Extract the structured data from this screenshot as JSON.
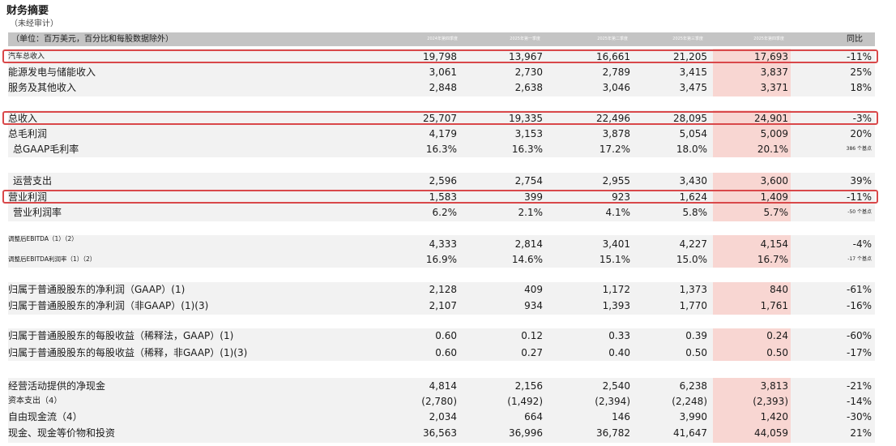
{
  "title": "财务摘要",
  "subtitle": "（未经审计）",
  "header": {
    "unit_label": "（单位：百万美元，百分比和每股数据除外）",
    "periods": [
      "2024年第四季度",
      "2025年第一季度",
      "2025年第二季度",
      "2025年第三季度",
      "2025年第四季度"
    ],
    "yoy_label": "同比"
  },
  "rows": [
    {
      "label": "汽车总收入",
      "values": [
        "19,798",
        "13,967",
        "16,661",
        "21,205",
        "17,693"
      ],
      "yoy": "-11%"
    },
    {
      "label": "能源发电与储能收入",
      "values": [
        "3,061",
        "2,730",
        "2,789",
        "3,415",
        "3,837"
      ],
      "yoy": "25%"
    },
    {
      "label": "服务及其他收入",
      "values": [
        "2,848",
        "2,638",
        "3,046",
        "3,475",
        "3,371"
      ],
      "yoy": "18%"
    },
    {
      "label": "总收入",
      "values": [
        "25,707",
        "19,335",
        "22,496",
        "28,095",
        "24,901"
      ],
      "yoy": "-3%"
    },
    {
      "label": "总毛利润",
      "values": [
        "4,179",
        "3,153",
        "3,878",
        "5,054",
        "5,009"
      ],
      "yoy": "20%"
    },
    {
      "label": "总GAAP毛利率",
      "values": [
        "16.3%",
        "16.3%",
        "17.2%",
        "18.0%",
        "20.1%"
      ],
      "yoy": "386 个基点"
    },
    {
      "label": "运营支出",
      "values": [
        "2,596",
        "2,754",
        "2,955",
        "3,430",
        "3,600"
      ],
      "yoy": "39%"
    },
    {
      "label": "营业利润",
      "values": [
        "1,583",
        "399",
        "923",
        "1,624",
        "1,409"
      ],
      "yoy": "-11%"
    },
    {
      "label": "营业利润率",
      "values": [
        "6.2%",
        "2.1%",
        "4.1%",
        "5.8%",
        "5.7%"
      ],
      "yoy": "-50 个基点"
    },
    {
      "label": "调整后EBITDA（1）（2）",
      "values": [
        "4,333",
        "2,814",
        "3,401",
        "4,227",
        "4,154"
      ],
      "yoy": "-4%"
    },
    {
      "label": "调整后EBITDA利润率（1）（2）",
      "values": [
        "16.9%",
        "14.6%",
        "15.1%",
        "15.0%",
        "16.7%"
      ],
      "yoy": "-17 个基点"
    },
    {
      "label": "归属于普通股股东的净利润（GAAP）(1)",
      "values": [
        "2,128",
        "409",
        "1,172",
        "1,373",
        "840"
      ],
      "yoy": "-61%"
    },
    {
      "label": "归属于普通股股东的净利润（非GAAP）(1)(3)",
      "values": [
        "2,107",
        "934",
        "1,393",
        "1,770",
        "1,761"
      ],
      "yoy": "-16%"
    },
    {
      "label": "归属于普通股股东的每股收益（稀释法，GAAP）(1)",
      "values": [
        "0.60",
        "0.12",
        "0.33",
        "0.39",
        "0.24"
      ],
      "yoy": "-60%"
    },
    {
      "label": "归属于普通股股东的每股收益（稀释，非GAAP）(1)(3)",
      "values": [
        "0.60",
        "0.27",
        "0.40",
        "0.50",
        "0.50"
      ],
      "yoy": "-17%"
    },
    {
      "label": "经营活动提供的净现金",
      "values": [
        "4,814",
        "2,156",
        "2,540",
        "6,238",
        "3,813"
      ],
      "yoy": "-21%"
    },
    {
      "label": "资本支出（4）",
      "values": [
        "(2,780)",
        "(1,492)",
        "(2,394)",
        "(2,248)",
        "(2,393)"
      ],
      "yoy": "-14%"
    },
    {
      "label": "自由现金流（4）",
      "values": [
        "2,034",
        "664",
        "146",
        "3,990",
        "1,420"
      ],
      "yoy": "-30%"
    },
    {
      "label": "现金、现金等价物和投资",
      "values": [
        "36,563",
        "36,996",
        "36,782",
        "41,647",
        "44,059"
      ],
      "yoy": "21%"
    }
  ]
}
